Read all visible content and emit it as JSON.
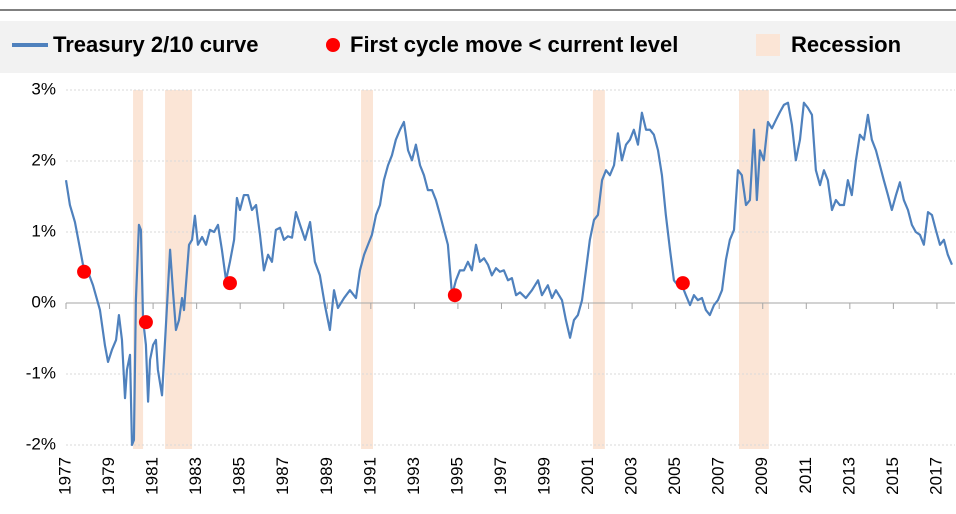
{
  "chart_data": {
    "type": "line",
    "series": [
      {
        "name": "Treasury 2/10 curve",
        "color": "#4f81bd",
        "x": [
          1977.0,
          1977.18,
          1977.41,
          1977.64,
          1977.78,
          1978.01,
          1978.24,
          1978.56,
          1978.79,
          1978.93,
          1979.11,
          1979.3,
          1979.43,
          1979.57,
          1979.71,
          1979.8,
          1979.94,
          1980.03,
          1980.12,
          1980.21,
          1980.35,
          1980.44,
          1980.54,
          1980.67,
          1980.77,
          1980.86,
          1981.0,
          1981.13,
          1981.22,
          1981.41,
          1981.59,
          1981.78,
          1981.91,
          1982.05,
          1982.19,
          1982.33,
          1982.42,
          1982.56,
          1982.65,
          1982.79,
          1982.92,
          1983.06,
          1983.25,
          1983.43,
          1983.61,
          1983.8,
          1983.98,
          1984.16,
          1984.35,
          1984.53,
          1984.72,
          1984.85,
          1984.99,
          1985.17,
          1985.36,
          1985.54,
          1985.73,
          1985.91,
          1986.09,
          1986.28,
          1986.46,
          1986.64,
          1986.83,
          1987.01,
          1987.19,
          1987.38,
          1987.56,
          1987.75,
          1987.98,
          1988.21,
          1988.43,
          1988.66,
          1988.89,
          1989.12,
          1989.31,
          1989.49,
          1989.77,
          1990.04,
          1990.32,
          1990.5,
          1990.69,
          1990.87,
          1991.05,
          1991.24,
          1991.42,
          1991.6,
          1991.79,
          1991.97,
          1992.15,
          1992.34,
          1992.52,
          1992.71,
          1992.89,
          1993.07,
          1993.26,
          1993.44,
          1993.62,
          1993.81,
          1993.99,
          1994.18,
          1994.36,
          1994.54,
          1994.73,
          1994.91,
          1995.09,
          1995.28,
          1995.46,
          1995.64,
          1995.83,
          1996.01,
          1996.2,
          1996.38,
          1996.56,
          1996.75,
          1996.93,
          1997.11,
          1997.3,
          1997.48,
          1997.67,
          1997.85,
          1998.12,
          1998.4,
          1998.68,
          1998.86,
          1999.13,
          1999.32,
          1999.5,
          1999.78,
          1999.96,
          2000.15,
          2000.33,
          2000.51,
          2000.7,
          2000.88,
          2001.06,
          2001.25,
          2001.43,
          2001.62,
          2001.8,
          2001.98,
          2002.17,
          2002.35,
          2002.53,
          2002.72,
          2002.9,
          2003.08,
          2003.27,
          2003.45,
          2003.64,
          2003.82,
          2004.0,
          2004.19,
          2004.37,
          2004.55,
          2004.74,
          2004.92,
          2005.1,
          2005.29,
          2005.47,
          2005.66,
          2005.84,
          2006.02,
          2006.21,
          2006.39,
          2006.57,
          2006.76,
          2006.94,
          2007.13,
          2007.31,
          2007.49,
          2007.68,
          2007.86,
          2008.04,
          2008.23,
          2008.41,
          2008.6,
          2008.73,
          2008.87,
          2009.05,
          2009.24,
          2009.42,
          2009.61,
          2009.79,
          2009.97,
          2010.16,
          2010.34,
          2010.52,
          2010.71,
          2010.89,
          2011.07,
          2011.26,
          2011.44,
          2011.63,
          2011.81,
          2011.99,
          2012.18,
          2012.36,
          2012.54,
          2012.73,
          2012.91,
          2013.09,
          2013.28,
          2013.46,
          2013.65,
          2013.83,
          2014.01,
          2014.2,
          2014.38,
          2014.56,
          2014.75,
          2014.93,
          2015.12,
          2015.3,
          2015.48,
          2015.67,
          2015.85,
          2016.03,
          2016.22,
          2016.4,
          2016.59,
          2016.77,
          2016.95,
          2017.14,
          2017.32,
          2017.5,
          2017.69
        ],
        "values": [
          1.73,
          1.38,
          1.14,
          0.77,
          0.54,
          0.44,
          0.25,
          -0.1,
          -0.6,
          -0.83,
          -0.66,
          -0.52,
          -0.17,
          -0.52,
          -1.34,
          -0.94,
          -0.73,
          -2.0,
          -1.93,
          0.04,
          1.1,
          1.03,
          -0.24,
          -0.59,
          -1.39,
          -0.8,
          -0.59,
          -0.52,
          -0.94,
          -1.3,
          -0.31,
          0.75,
          0.18,
          -0.38,
          -0.24,
          0.07,
          -0.1,
          0.46,
          0.82,
          0.89,
          1.23,
          0.82,
          0.93,
          0.82,
          1.03,
          1.0,
          1.1,
          0.75,
          0.32,
          0.58,
          0.89,
          1.48,
          1.31,
          1.52,
          1.52,
          1.31,
          1.38,
          0.96,
          0.46,
          0.68,
          0.58,
          1.03,
          1.06,
          0.89,
          0.94,
          0.92,
          1.28,
          1.1,
          0.89,
          1.14,
          0.58,
          0.39,
          -0.03,
          -0.38,
          0.18,
          -0.07,
          0.07,
          0.18,
          0.07,
          0.46,
          0.68,
          0.82,
          0.96,
          1.24,
          1.38,
          1.73,
          1.94,
          2.08,
          2.3,
          2.44,
          2.55,
          2.15,
          2.01,
          2.23,
          1.94,
          1.8,
          1.59,
          1.59,
          1.45,
          1.24,
          1.03,
          0.82,
          0.11,
          0.32,
          0.46,
          0.46,
          0.58,
          0.46,
          0.82,
          0.58,
          0.63,
          0.54,
          0.39,
          0.49,
          0.44,
          0.46,
          0.32,
          0.35,
          0.11,
          0.15,
          0.07,
          0.18,
          0.32,
          0.11,
          0.25,
          0.07,
          0.18,
          0.04,
          -0.24,
          -0.49,
          -0.24,
          -0.17,
          0.04,
          0.46,
          0.89,
          1.17,
          1.24,
          1.73,
          1.87,
          1.8,
          1.94,
          2.39,
          2.01,
          2.23,
          2.3,
          2.44,
          2.23,
          2.68,
          2.44,
          2.44,
          2.37,
          2.15,
          1.8,
          1.24,
          0.75,
          0.32,
          0.25,
          0.25,
          0.11,
          -0.03,
          0.11,
          0.04,
          0.07,
          -0.1,
          -0.17,
          -0.03,
          0.04,
          0.18,
          0.61,
          0.89,
          1.03,
          1.87,
          1.8,
          1.38,
          1.45,
          2.44,
          1.45,
          2.15,
          2.01,
          2.55,
          2.46,
          2.58,
          2.69,
          2.79,
          2.82,
          2.51,
          2.01,
          2.3,
          2.82,
          2.75,
          2.65,
          1.87,
          1.66,
          1.87,
          1.73,
          1.31,
          1.45,
          1.38,
          1.38,
          1.73,
          1.52,
          2.01,
          2.37,
          2.3,
          2.65,
          2.3,
          2.15,
          1.94,
          1.73,
          1.52,
          1.31,
          1.52,
          1.7,
          1.45,
          1.31,
          1.1,
          1.0,
          0.96,
          0.82,
          1.28,
          1.24,
          1.03,
          0.82,
          0.89,
          0.68,
          0.54
        ]
      }
    ],
    "points": {
      "name": "First cycle move < current level",
      "color": "#ff0000",
      "x": [
        1977.83,
        1980.67,
        1984.53,
        1994.86,
        2005.33
      ],
      "values": [
        0.44,
        -0.27,
        0.28,
        0.11,
        0.28
      ]
    },
    "recessions": {
      "name": "Recession",
      "color": "#fbe5d6",
      "ranges": [
        [
          1980.08,
          1980.54
        ],
        [
          1981.55,
          1982.79
        ],
        [
          1990.55,
          1991.1
        ],
        [
          2001.2,
          2001.75
        ],
        [
          2007.91,
          2009.28
        ]
      ]
    },
    "xlim": [
      1977,
      2017.83
    ],
    "xticks": [
      1977,
      1979,
      1981,
      1983,
      1985,
      1987,
      1989,
      1991,
      1993,
      1995,
      1997,
      1999,
      2001,
      2003,
      2005,
      2007,
      2009,
      2011,
      2013,
      2015,
      2017
    ],
    "ylim": [
      -2,
      3
    ],
    "yticks": [
      {
        "value": -2,
        "label": "-2%"
      },
      {
        "value": -1,
        "label": "-1%"
      },
      {
        "value": 0,
        "label": "0%"
      },
      {
        "value": 1,
        "label": "1%"
      },
      {
        "value": 2,
        "label": "2%"
      },
      {
        "value": 3,
        "label": "3%"
      }
    ],
    "grid": true
  }
}
